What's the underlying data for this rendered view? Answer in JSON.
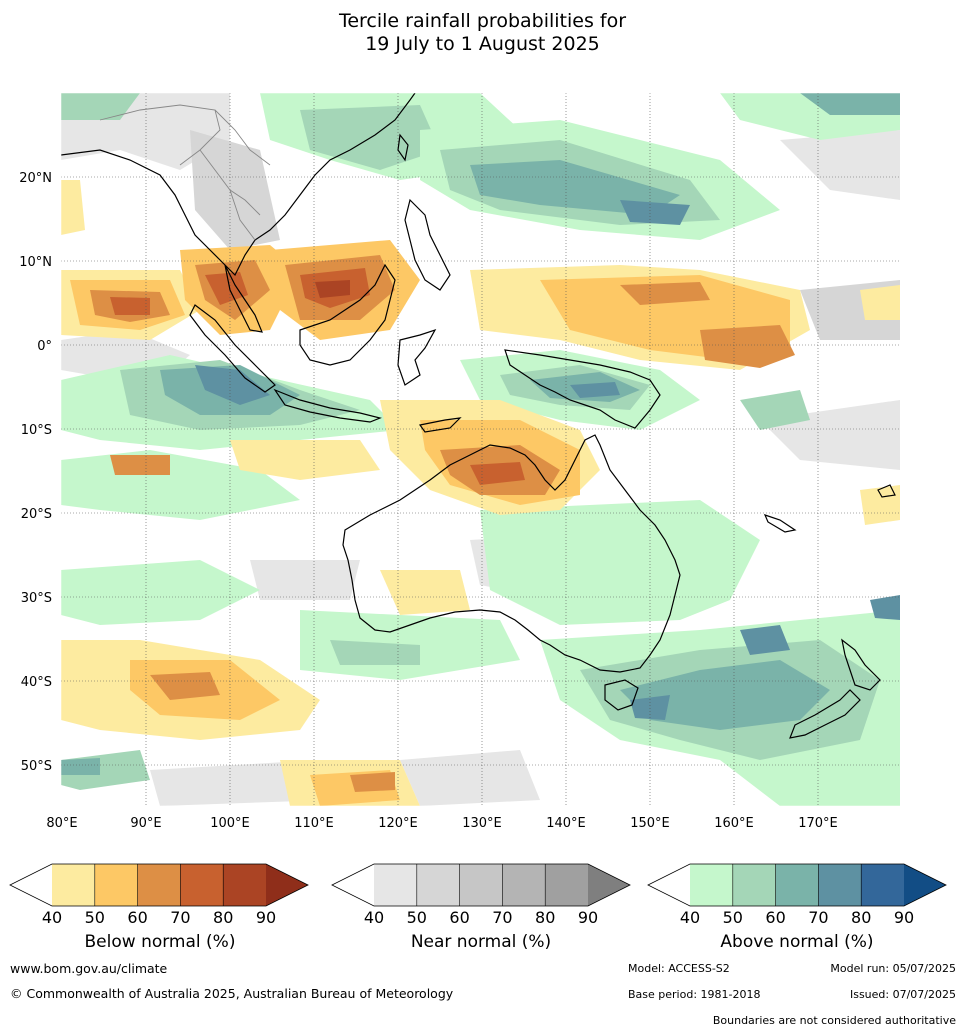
{
  "title": {
    "line1": "Tercile rainfall probabilities for",
    "line2": "19 July to 1 August 2025"
  },
  "map": {
    "region": "Indo-Pacific and Australia",
    "lat_ticks": [
      "20°N",
      "10°N",
      "0°",
      "10°S",
      "20°S",
      "30°S",
      "40°S",
      "50°S"
    ],
    "lon_ticks": [
      "80°E",
      "90°E",
      "100°E",
      "110°E",
      "120°E",
      "130°E",
      "140°E",
      "150°E",
      "160°E",
      "170°E"
    ],
    "gridlines": true
  },
  "colorbars": [
    {
      "label": "Below normal (%)",
      "ticks": [
        "40",
        "50",
        "60",
        "70",
        "80",
        "90"
      ],
      "colors": [
        "#ffffff",
        "#fdeba0",
        "#fdc865",
        "#dd8f45",
        "#c8612f",
        "#ab4424",
        "#8f2e1a"
      ]
    },
    {
      "label": "Near normal (%)",
      "ticks": [
        "40",
        "50",
        "60",
        "70",
        "80",
        "90"
      ],
      "colors": [
        "#ffffff",
        "#e6e6e6",
        "#d6d6d6",
        "#c6c6c6",
        "#b4b4b4",
        "#a0a0a0",
        "#7f7f7f"
      ]
    },
    {
      "label": "Above normal (%)",
      "ticks": [
        "40",
        "50",
        "60",
        "70",
        "80",
        "90"
      ],
      "colors": [
        "#ffffff",
        "#c5f7cc",
        "#a4d6b7",
        "#7ab3a9",
        "#5e91a2",
        "#33679a",
        "#124d85"
      ]
    }
  ],
  "footer": {
    "website": "www.bom.gov.au/climate",
    "copyright": "© Commonwealth of Australia 2025, Australian Bureau of Meteorology",
    "model": "Model: ACCESS-S2",
    "model_run": "Model run: 05/07/2025",
    "base_period": "Base period: 1981-2018",
    "issued": "Issued: 07/07/2025",
    "disclaimer": "Boundaries are not considered authoritative"
  }
}
